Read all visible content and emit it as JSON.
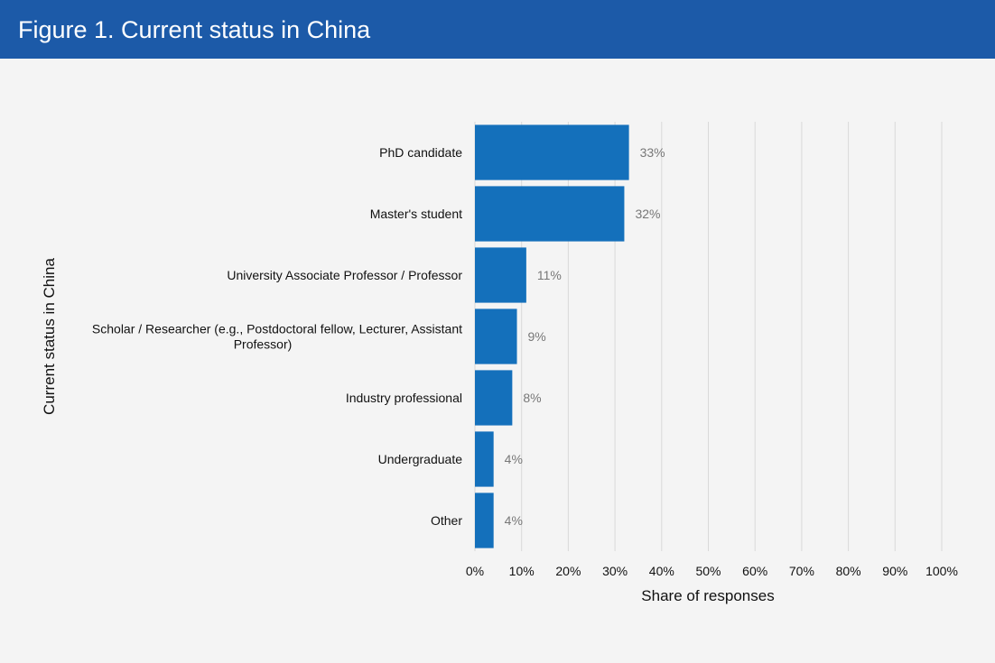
{
  "header": {
    "title": "Figure 1. Current status in China"
  },
  "colors": {
    "header_bg": "#1c5aa8",
    "bar": "#1470bb",
    "grid": "#d9d9d9",
    "value_label": "#777777",
    "text": "#111111",
    "background": "#f4f4f4"
  },
  "chart_data": {
    "type": "bar",
    "orientation": "horizontal",
    "title": "Figure 1. Current status in China",
    "xlabel": "Share of responses",
    "ylabel": "Current status in China",
    "xlim": [
      0,
      100
    ],
    "x_ticks": [
      0,
      10,
      20,
      30,
      40,
      50,
      60,
      70,
      80,
      90,
      100
    ],
    "x_tick_labels": [
      "0%",
      "10%",
      "20%",
      "30%",
      "40%",
      "50%",
      "60%",
      "70%",
      "80%",
      "90%",
      "100%"
    ],
    "grid": "vertical",
    "categories": [
      "PhD candidate",
      "Master's student",
      "University Associate Professor / Professor",
      "Scholar / Researcher (e.g., Postdoctoral fellow, Lecturer, Assistant Professor)",
      "Industry professional",
      "Undergraduate",
      "Other"
    ],
    "category_lines": [
      [
        "PhD candidate"
      ],
      [
        "Master's student"
      ],
      [
        "University Associate Professor / Professor"
      ],
      [
        "Scholar / Researcher (e.g., Postdoctoral fellow, Lecturer, Assistant",
        "Professor)"
      ],
      [
        "Industry professional"
      ],
      [
        "Undergraduate"
      ],
      [
        "Other"
      ]
    ],
    "values": [
      33,
      32,
      11,
      9,
      8,
      4,
      4
    ],
    "value_labels": [
      "33%",
      "32%",
      "11%",
      "9%",
      "8%",
      "4%",
      "4%"
    ]
  }
}
